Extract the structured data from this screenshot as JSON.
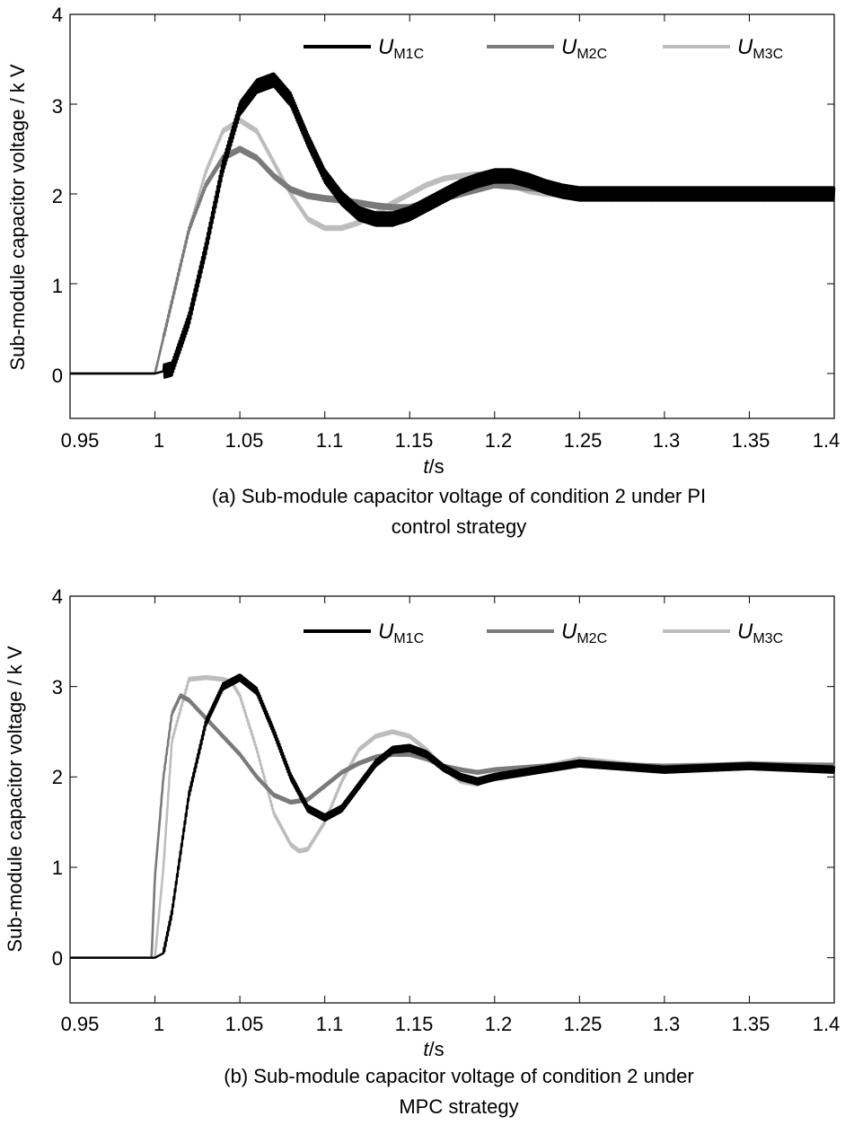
{
  "chart_data": [
    {
      "type": "line",
      "panel": "a",
      "caption_line1": "(a) Sub-module capacitor voltage of condition 2 under PI",
      "caption_line2": "control strategy",
      "ylabel": "Sub-module capacitor voltage / k V",
      "xlabel_var": "t",
      "xlabel_unit": "/s",
      "xlim": [
        0.95,
        1.4
      ],
      "ylim": [
        -0.5,
        4
      ],
      "xticks": [
        "0.95",
        "1",
        "1.05",
        "1.1",
        "1.15",
        "1.2",
        "1.25",
        "1.3",
        "1.35",
        "1.4"
      ],
      "yticks": [
        "0",
        "1",
        "2",
        "3",
        "4"
      ],
      "legend_position": "top-right",
      "series": [
        {
          "name": "U",
          "sub": "M1C",
          "color": "#000000",
          "ripple": 0.15,
          "x": [
            0.95,
            1.0,
            1.01,
            1.02,
            1.03,
            1.04,
            1.05,
            1.06,
            1.07,
            1.08,
            1.09,
            1.1,
            1.11,
            1.12,
            1.13,
            1.14,
            1.15,
            1.16,
            1.17,
            1.18,
            1.19,
            1.2,
            1.21,
            1.22,
            1.23,
            1.24,
            1.25,
            1.3,
            1.35,
            1.4
          ],
          "y": [
            0,
            0,
            0.05,
            0.6,
            1.4,
            2.3,
            2.95,
            3.2,
            3.27,
            3.05,
            2.6,
            2.2,
            1.95,
            1.78,
            1.72,
            1.72,
            1.78,
            1.88,
            1.98,
            2.08,
            2.15,
            2.2,
            2.2,
            2.15,
            2.08,
            2.03,
            2.0,
            2.0,
            2.0,
            2.0
          ]
        },
        {
          "name": "U",
          "sub": "M2C",
          "color": "#7a7a7a",
          "ripple": 0.05,
          "x": [
            0.95,
            1.0,
            1.01,
            1.02,
            1.03,
            1.04,
            1.05,
            1.06,
            1.07,
            1.08,
            1.09,
            1.1,
            1.11,
            1.12,
            1.13,
            1.14,
            1.15,
            1.16,
            1.17,
            1.18,
            1.19,
            1.2,
            1.25,
            1.3,
            1.35,
            1.4
          ],
          "y": [
            0,
            0,
            0.8,
            1.6,
            2.1,
            2.4,
            2.5,
            2.4,
            2.2,
            2.05,
            1.98,
            1.95,
            1.93,
            1.9,
            1.87,
            1.85,
            1.85,
            1.9,
            1.95,
            2.0,
            2.05,
            2.1,
            2.02,
            2.02,
            2.02,
            2.02
          ]
        },
        {
          "name": "U",
          "sub": "M3C",
          "color": "#bdbdbd",
          "ripple": 0.04,
          "x": [
            0.95,
            1.0,
            1.01,
            1.02,
            1.03,
            1.04,
            1.05,
            1.06,
            1.07,
            1.08,
            1.09,
            1.1,
            1.11,
            1.12,
            1.13,
            1.14,
            1.15,
            1.16,
            1.17,
            1.18,
            1.19,
            1.2,
            1.21,
            1.22,
            1.23,
            1.25,
            1.3,
            1.35,
            1.4
          ],
          "y": [
            0,
            0,
            0.8,
            1.6,
            2.25,
            2.7,
            2.82,
            2.7,
            2.35,
            2.0,
            1.72,
            1.62,
            1.62,
            1.68,
            1.78,
            1.9,
            2.0,
            2.1,
            2.17,
            2.2,
            2.22,
            2.18,
            2.1,
            2.03,
            2.0,
            1.98,
            2.0,
            2.0,
            2.0
          ]
        }
      ]
    },
    {
      "type": "line",
      "panel": "b",
      "caption_line1": "(b) Sub-module capacitor voltage of condition 2 under",
      "caption_line2": "MPC strategy",
      "ylabel": "Sub-module capacitor voltage / k V",
      "xlabel_var": "t",
      "xlabel_unit": "/s",
      "xlim": [
        0.95,
        1.4
      ],
      "ylim": [
        -0.5,
        4
      ],
      "xticks": [
        "0.95",
        "1",
        "1.05",
        "1.1",
        "1.15",
        "1.2",
        "1.25",
        "1.3",
        "1.35",
        "1.4"
      ],
      "yticks": [
        "0",
        "1",
        "2",
        "3",
        "4"
      ],
      "legend_position": "top-right",
      "series": [
        {
          "name": "U",
          "sub": "M1C",
          "color": "#000000",
          "ripple": 0.07,
          "x": [
            0.95,
            1.0,
            1.005,
            1.01,
            1.02,
            1.03,
            1.04,
            1.05,
            1.06,
            1.07,
            1.08,
            1.09,
            1.1,
            1.11,
            1.12,
            1.13,
            1.14,
            1.15,
            1.16,
            1.17,
            1.18,
            1.19,
            1.2,
            1.25,
            1.3,
            1.35,
            1.4
          ],
          "y": [
            0,
            0,
            0.05,
            0.5,
            1.8,
            2.6,
            3.0,
            3.1,
            2.95,
            2.5,
            2.0,
            1.65,
            1.55,
            1.65,
            1.9,
            2.15,
            2.3,
            2.32,
            2.25,
            2.1,
            2.0,
            1.95,
            2.0,
            2.15,
            2.08,
            2.12,
            2.08
          ]
        },
        {
          "name": "U",
          "sub": "M2C",
          "color": "#7a7a7a",
          "ripple": 0.03,
          "x": [
            0.95,
            0.998,
            1.0,
            1.005,
            1.01,
            1.015,
            1.02,
            1.03,
            1.04,
            1.05,
            1.06,
            1.07,
            1.08,
            1.09,
            1.1,
            1.11,
            1.12,
            1.13,
            1.14,
            1.15,
            1.16,
            1.17,
            1.18,
            1.19,
            1.2,
            1.25,
            1.3,
            1.35,
            1.4
          ],
          "y": [
            0,
            0,
            0.9,
            2.0,
            2.7,
            2.9,
            2.85,
            2.65,
            2.45,
            2.25,
            2.0,
            1.8,
            1.72,
            1.75,
            1.9,
            2.05,
            2.15,
            2.22,
            2.25,
            2.25,
            2.2,
            2.12,
            2.08,
            2.05,
            2.08,
            2.15,
            2.12,
            2.14,
            2.13
          ]
        },
        {
          "name": "U",
          "sub": "M3C",
          "color": "#bdbdbd",
          "ripple": 0.03,
          "x": [
            0.95,
            1.0,
            1.005,
            1.01,
            1.02,
            1.03,
            1.04,
            1.045,
            1.05,
            1.06,
            1.07,
            1.08,
            1.085,
            1.09,
            1.1,
            1.11,
            1.12,
            1.13,
            1.14,
            1.15,
            1.16,
            1.17,
            1.18,
            1.19,
            1.2,
            1.25,
            1.3,
            1.35,
            1.4
          ],
          "y": [
            0,
            0,
            1.0,
            2.4,
            3.08,
            3.1,
            3.08,
            3.05,
            2.9,
            2.3,
            1.6,
            1.25,
            1.18,
            1.2,
            1.5,
            1.95,
            2.3,
            2.45,
            2.5,
            2.45,
            2.3,
            2.1,
            1.95,
            1.92,
            2.0,
            2.2,
            2.1,
            2.15,
            2.12
          ]
        }
      ]
    }
  ]
}
